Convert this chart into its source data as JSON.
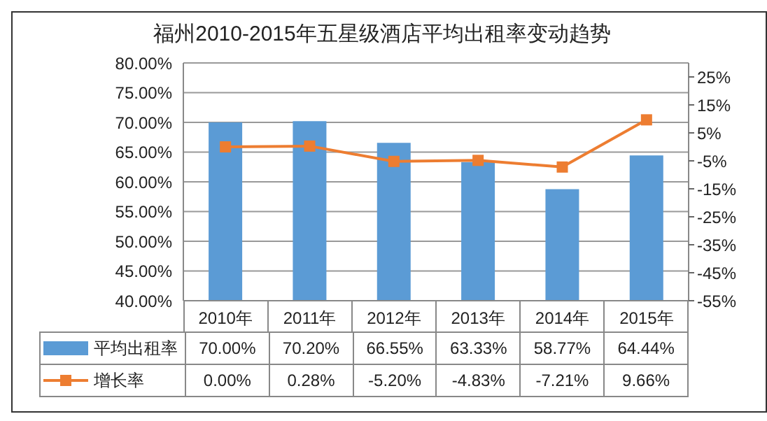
{
  "chart_data": {
    "type": "bar",
    "title": "福州2010-2015年五星级酒店平均出租率变动趋势",
    "categories": [
      "2010年",
      "2011年",
      "2012年",
      "2013年",
      "2014年",
      "2015年"
    ],
    "series": [
      {
        "name": "平均出租率",
        "color": "#5b9bd5",
        "values": [
          70.0,
          70.2,
          66.55,
          63.33,
          58.77,
          64.44
        ],
        "value_labels": [
          "70.00%",
          "70.20%",
          "66.55%",
          "63.33%",
          "58.77%",
          "64.44%"
        ]
      },
      {
        "name": "增长率",
        "type": "line",
        "axis": "y2",
        "color": "#ed7d31",
        "marker": "square",
        "values": [
          0.0,
          0.28,
          -5.2,
          -4.83,
          -7.21,
          9.66
        ],
        "value_labels": [
          "0.00%",
          "0.28%",
          "-5.20%",
          "-4.83%",
          "-7.21%",
          "9.66%"
        ]
      }
    ],
    "ylim": [
      40,
      80
    ],
    "yticks": [
      {
        "value": 40,
        "label": "40.00%"
      },
      {
        "value": 45,
        "label": "45.00%"
      },
      {
        "value": 50,
        "label": "50.00%"
      },
      {
        "value": 55,
        "label": "55.00%"
      },
      {
        "value": 60,
        "label": "60.00%"
      },
      {
        "value": 65,
        "label": "65.00%"
      },
      {
        "value": 70,
        "label": "70.00%"
      },
      {
        "value": 75,
        "label": "75.00%"
      },
      {
        "value": 80,
        "label": "80.00%"
      }
    ],
    "y2lim": [
      -55,
      30
    ],
    "y2ticks": [
      {
        "value": -55,
        "label": "-55%"
      },
      {
        "value": -45,
        "label": "-45%"
      },
      {
        "value": -35,
        "label": "-35%"
      },
      {
        "value": -25,
        "label": "-25%"
      },
      {
        "value": -15,
        "label": "-15%"
      },
      {
        "value": -5,
        "label": "-5%"
      },
      {
        "value": 5,
        "label": "5%"
      },
      {
        "value": 15,
        "label": "15%"
      },
      {
        "value": 25,
        "label": "25%"
      }
    ],
    "grid": "y",
    "legend": "bottom left"
  }
}
